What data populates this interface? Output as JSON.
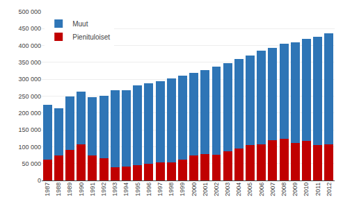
{
  "chart_data": {
    "type": "bar",
    "stacked": true,
    "categories": [
      "1987",
      "1988",
      "1989",
      "1990",
      "1991",
      "1992",
      "1993",
      "1994",
      "1995",
      "1996",
      "1997",
      "1998",
      "1999",
      "2000",
      "2001",
      "2002",
      "2003",
      "2004",
      "2005",
      "2006",
      "2007",
      "2008",
      "2009",
      "2010",
      "2011",
      "2012"
    ],
    "series": [
      {
        "name": "Pienituloiset",
        "color": "#C00000",
        "values": [
          62000,
          74000,
          91000,
          106000,
          74000,
          65000,
          40000,
          42000,
          45000,
          50000,
          53000,
          53000,
          62000,
          75000,
          78000,
          76000,
          86000,
          95000,
          105000,
          107000,
          119000,
          124000,
          111000,
          118000,
          105000,
          107000
        ]
      },
      {
        "name": "Muut",
        "color": "#2E75B6",
        "values": [
          163000,
          141000,
          157000,
          157000,
          172000,
          187000,
          228000,
          226000,
          236000,
          238000,
          242000,
          249000,
          248000,
          243000,
          250000,
          261000,
          262000,
          265000,
          265000,
          278000,
          274000,
          281000,
          299000,
          302000,
          320000,
          330000
        ]
      }
    ],
    "ylim": [
      0,
      500000
    ],
    "yticks": [
      0,
      {
        "value": 50000,
        "label": "50 000"
      },
      {
        "value": 100000,
        "label": "100 000"
      },
      {
        "value": 150000,
        "label": "150 000"
      },
      {
        "value": 200000,
        "label": "200 000"
      },
      {
        "value": 250000,
        "label": "250 000"
      },
      {
        "value": 300000,
        "label": "300 000"
      },
      {
        "value": 350000,
        "label": "350 000"
      },
      {
        "value": 400000,
        "label": "400 000"
      },
      {
        "value": 450000,
        "label": "450 000"
      },
      {
        "value": 500000,
        "label": "500 000"
      }
    ],
    "grid": true,
    "legend": "upper left"
  }
}
